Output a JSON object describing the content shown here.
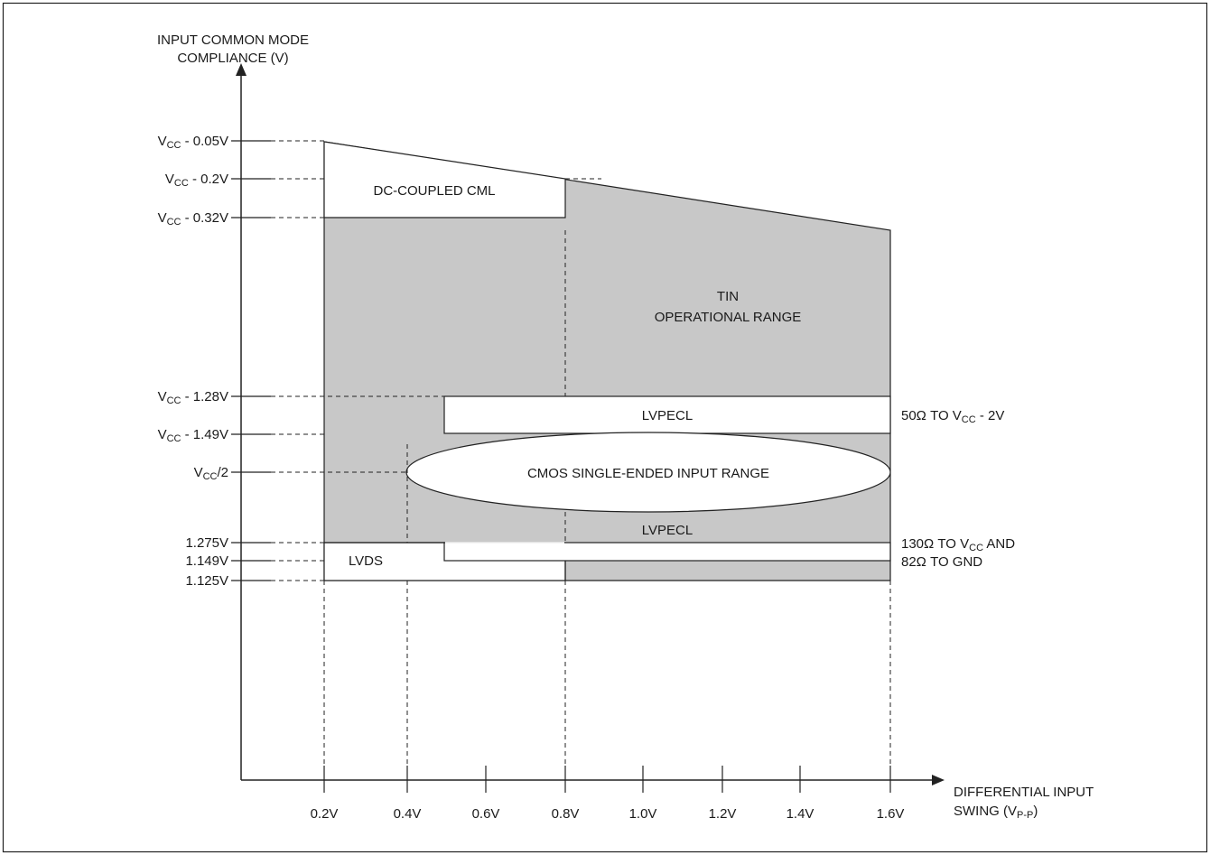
{
  "y_axis": {
    "title_line1": "INPUT COMMON MODE",
    "title_line2": "COMPLIANCE (V)",
    "levels": [
      {
        "pre": "V",
        "sub": "CC",
        "post": " - 0.05V"
      },
      {
        "pre": "V",
        "sub": "CC",
        "post": " - 0.2V"
      },
      {
        "pre": "V",
        "sub": "CC",
        "post": " - 0.32V"
      },
      {
        "pre": "V",
        "sub": "CC",
        "post": " - 1.28V"
      },
      {
        "pre": "V",
        "sub": "CC",
        "post": " - 1.49V"
      },
      {
        "pre": "V",
        "sub": "CC",
        "post": "/2"
      },
      {
        "pre": "1.275V",
        "sub": "",
        "post": ""
      },
      {
        "pre": "1.149V",
        "sub": "",
        "post": ""
      },
      {
        "pre": "1.125V",
        "sub": "",
        "post": ""
      }
    ]
  },
  "x_axis": {
    "title_line1": "DIFFERENTIAL INPUT",
    "title_line2_pre": "SWING (V",
    "title_line2_sub": "P-P",
    "title_line2_post": ")",
    "ticks": [
      "0.2V",
      "0.4V",
      "0.6V",
      "0.8V",
      "1.0V",
      "1.2V",
      "1.4V",
      "1.6V"
    ]
  },
  "regions": {
    "cml": "DC-COUPLED CML",
    "tin_line1": "TIN",
    "tin_line2": "OPERATIONAL RANGE",
    "lvpecl_top": "LVPECL",
    "cmos": "CMOS SINGLE-ENDED INPUT RANGE",
    "lvpecl_bottom": "LVPECL",
    "lvds": "LVDS"
  },
  "side_notes": {
    "top_pre": "50Ω TO V",
    "top_sub": "CC",
    "top_post": " - 2V",
    "bottom1_pre": "130Ω TO V",
    "bottom1_sub": "CC",
    "bottom1_post": " AND",
    "bottom2": "82Ω TO GND"
  },
  "colors": {
    "shaded_region": "#c8c8c8",
    "line": "#222222"
  }
}
